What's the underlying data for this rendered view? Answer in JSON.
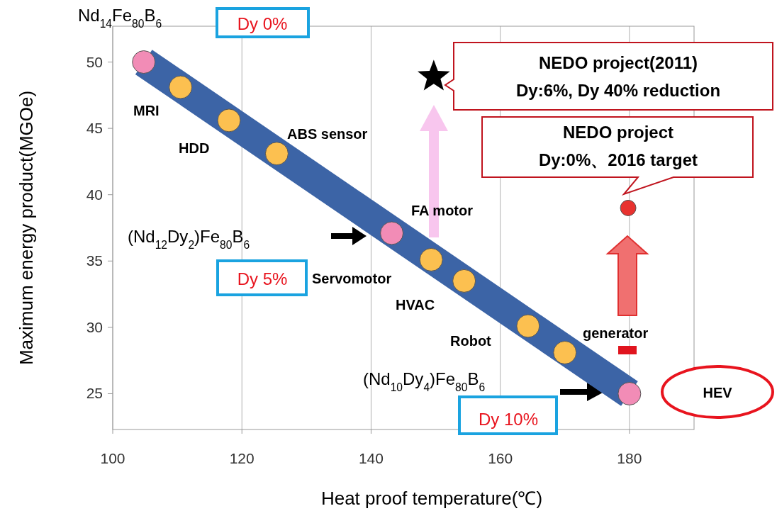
{
  "chart_data": {
    "type": "scatter",
    "xlabel": "Heat proof temperature(℃)",
    "ylabel": "Maximum energy product(MGOe)",
    "xlim": [
      100,
      190
    ],
    "ylim": [
      22.3,
      52.7
    ],
    "xticks": [
      100,
      120,
      140,
      160,
      180
    ],
    "yticks": [
      25,
      30,
      35,
      40,
      45,
      50
    ],
    "grid": "x",
    "series": [
      {
        "type": "line",
        "marker": "none",
        "color": "#3c64a6",
        "x": [
          104.8,
          180
        ],
        "values": [
          50,
          25
        ]
      },
      {
        "marker": "circle",
        "color": "#f28cb6",
        "x": [
          104.8,
          143.2,
          180
        ],
        "values": [
          50,
          37.1,
          25
        ]
      },
      {
        "marker": "circle",
        "color": "#fcc050",
        "x": [
          110.5,
          118.0,
          125.4,
          149.3,
          154.4,
          164.3,
          170.0
        ],
        "values": [
          48.1,
          45.6,
          43.1,
          35.1,
          33.5,
          30.1,
          28.1
        ]
      },
      {
        "marker": "star",
        "color": "#000000",
        "x": [
          149.7
        ],
        "values": [
          48.9
        ]
      },
      {
        "marker": "circle",
        "color": "#e8322f",
        "x": [
          179.8
        ],
        "values": [
          39.0
        ]
      }
    ],
    "annotations": [
      "Nd$_{14}$Fe$_{80}$B$_{6}$",
      "Dy 0%",
      "MRI",
      "HDD",
      "ABS sensor",
      "FA motor",
      "(Nd$_{12}$Dy$_{2}$)Fe$_{80}$B$_{6}$",
      "Dy 5%",
      "Servomotor",
      "HVAC",
      "Robot",
      "generator",
      "(Nd$_{10}$Dy$_{4}$)Fe$_{80}$B$_{6}$",
      "Dy 10%",
      "HEV",
      "NEDO project(2011)\nDy:6%, Dy 40% reduction",
      "NEDO project\nDy:0%、2016 target"
    ]
  }
}
